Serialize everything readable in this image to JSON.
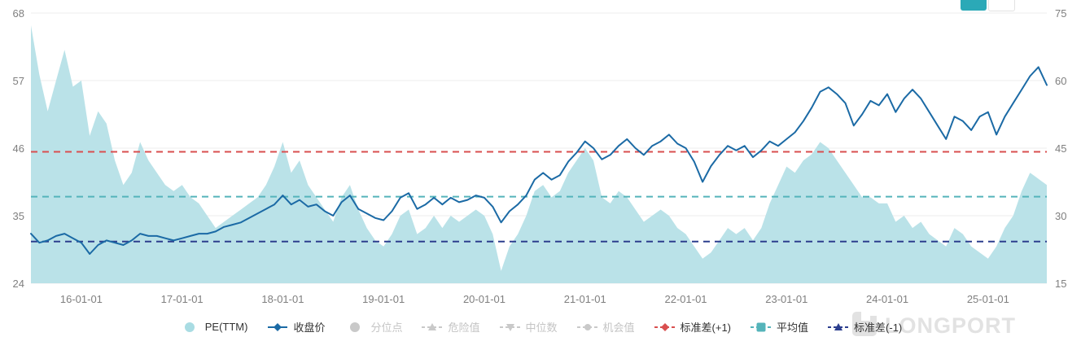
{
  "watermark": {
    "text": "LONGPORT"
  },
  "header": {
    "cutoff_buttons": [
      {
        "name": "primary",
        "color": "#2ba9b7"
      },
      {
        "name": "secondary",
        "color": "#ffffff"
      }
    ]
  },
  "legend": {
    "items": [
      {
        "label": "PE(TTM)",
        "marker": "circle",
        "color": "#a9dce3",
        "active": true
      },
      {
        "label": "收盘价",
        "marker": "line-diamond",
        "color": "#1b6aa5",
        "active": true
      },
      {
        "label": "分位点",
        "marker": "circle",
        "color": "#c9c9c9",
        "active": false
      },
      {
        "label": "危险值",
        "marker": "dash-triangle-up",
        "color": "#c9c9c9",
        "active": false
      },
      {
        "label": "中位数",
        "marker": "dash-triangle-down",
        "color": "#c9c9c9",
        "active": false
      },
      {
        "label": "机会值",
        "marker": "dash-circle",
        "color": "#c9c9c9",
        "active": false
      },
      {
        "label": "标准差(+1)",
        "marker": "dash-diamond",
        "color": "#d94f4f",
        "active": true
      },
      {
        "label": "平均值",
        "marker": "dash-square",
        "color": "#55b4ba",
        "active": true
      },
      {
        "label": "标准差(-1)",
        "marker": "dash-triangle-up",
        "color": "#2c3e8e",
        "active": true
      }
    ]
  },
  "chart_data": {
    "type": "area+line",
    "x_range_years": [
      2015.5,
      2025.583
    ],
    "x_ticks": [
      {
        "label": "16-01-01",
        "year": 2016
      },
      {
        "label": "17-01-01",
        "year": 2017
      },
      {
        "label": "18-01-01",
        "year": 2018
      },
      {
        "label": "19-01-01",
        "year": 2019
      },
      {
        "label": "20-01-01",
        "year": 2020
      },
      {
        "label": "21-01-01",
        "year": 2021
      },
      {
        "label": "22-01-01",
        "year": 2022
      },
      {
        "label": "23-01-01",
        "year": 2023
      },
      {
        "label": "24-01-01",
        "year": 2024
      },
      {
        "label": "25-01-01",
        "year": 2025
      }
    ],
    "axes": {
      "left": {
        "range": [
          24,
          68
        ],
        "ticks": [
          24,
          35,
          46,
          57,
          68
        ]
      },
      "right": {
        "range": [
          15,
          75
        ],
        "ticks": [
          15,
          30,
          45,
          60,
          75
        ]
      }
    },
    "grid": "horizontal",
    "legend_position": "bottom",
    "series": [
      {
        "name": "PE(TTM)",
        "kind": "area",
        "axis": "left",
        "color": "#b3dfe5",
        "fill_opacity": 0.9,
        "values": [
          66,
          58,
          52,
          57,
          62,
          56,
          57,
          48,
          52,
          50,
          44,
          40,
          42,
          47,
          44,
          42,
          40,
          39,
          40,
          38,
          37,
          35,
          33,
          34,
          35,
          36,
          37,
          38,
          40,
          43,
          47,
          42,
          44,
          40,
          38,
          36,
          34,
          38,
          40,
          36,
          33,
          31,
          30,
          32,
          35,
          36,
          32,
          33,
          35,
          33,
          35,
          34,
          35,
          36,
          35,
          32,
          26,
          30,
          32,
          35,
          39,
          40,
          38,
          39,
          42,
          44,
          46,
          44,
          38,
          37,
          39,
          38,
          36,
          34,
          35,
          36,
          35,
          33,
          32,
          30,
          28,
          29,
          31,
          33,
          32,
          33,
          31,
          33,
          37,
          40,
          43,
          42,
          44,
          45,
          47,
          46,
          44,
          42,
          40,
          38,
          38,
          37,
          37,
          34,
          35,
          33,
          34,
          32,
          31,
          30,
          33,
          32,
          30,
          29,
          28,
          30,
          33,
          35,
          39,
          42,
          41,
          40
        ]
      },
      {
        "name": "收盘价",
        "kind": "line",
        "axis": "right",
        "color": "#1b6aa5",
        "values": [
          26,
          24,
          24.5,
          25.5,
          26,
          25,
          24,
          21.5,
          23.5,
          24.5,
          24,
          23.5,
          24.5,
          26,
          25.5,
          25.5,
          25,
          24.5,
          25,
          25.5,
          26,
          26,
          26.5,
          27.5,
          28,
          28.5,
          29.5,
          30.5,
          31.5,
          32.5,
          34.5,
          32.5,
          33.5,
          32,
          32.5,
          31,
          30,
          33,
          34.5,
          31.5,
          30.5,
          29.5,
          29,
          31,
          34,
          35,
          31.5,
          32.5,
          34,
          32.5,
          34,
          33,
          33.5,
          34.5,
          34,
          32,
          28.5,
          31,
          32.5,
          34.5,
          38,
          39.5,
          38,
          39,
          42,
          44,
          46.5,
          45,
          42.5,
          43.5,
          45.5,
          47,
          45,
          43.5,
          45.5,
          46.5,
          48,
          46,
          45,
          42,
          37.5,
          41,
          43.5,
          45.5,
          44.5,
          45.5,
          43,
          44.5,
          46.5,
          45.5,
          47,
          48.5,
          51,
          54,
          57.5,
          58.5,
          57,
          55,
          50,
          52.5,
          55.5,
          54.5,
          57,
          53,
          56,
          58,
          56,
          53,
          50,
          47,
          52,
          51,
          49,
          52,
          53,
          48,
          52,
          55,
          58,
          61,
          63,
          59
        ]
      }
    ],
    "reference_lines": [
      {
        "name": "标准差(+1)",
        "axis": "left",
        "value": 45.4,
        "color": "#d94f4f",
        "style": "dashed"
      },
      {
        "name": "平均值",
        "axis": "left",
        "value": 38.1,
        "color": "#55b4ba",
        "style": "dashed"
      },
      {
        "name": "标准差(-1)",
        "axis": "left",
        "value": 30.8,
        "color": "#2c3e8e",
        "style": "dashed"
      }
    ]
  }
}
